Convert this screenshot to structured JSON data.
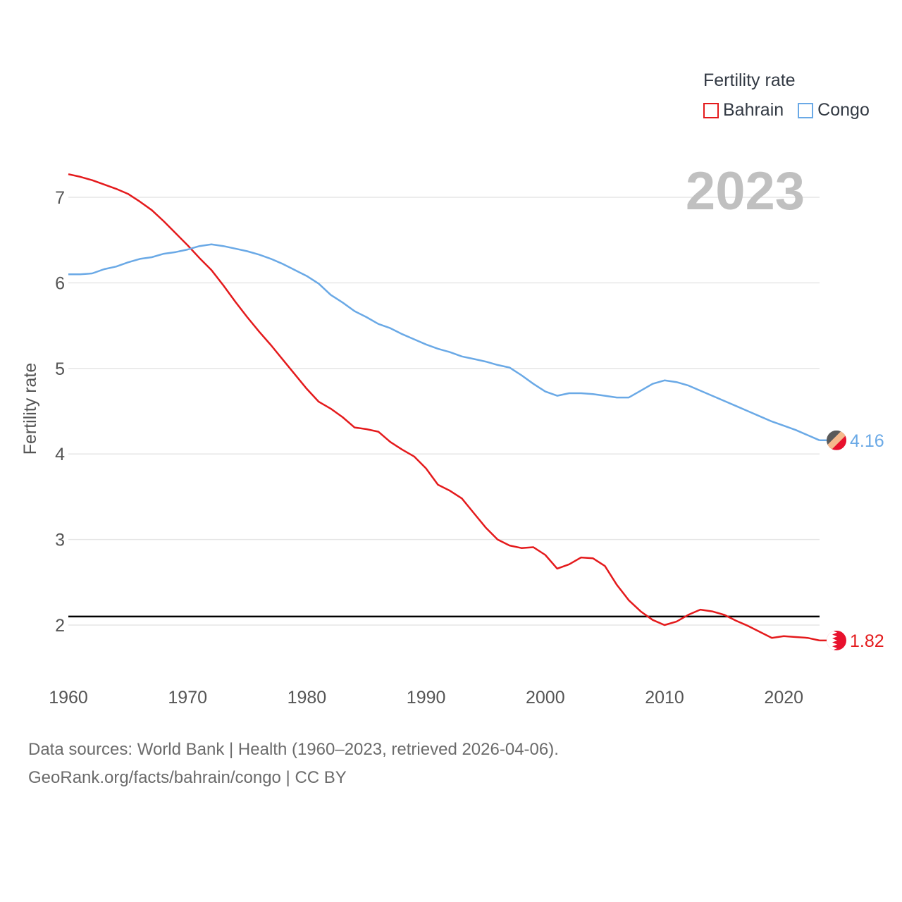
{
  "legend": {
    "title": "Fertility rate",
    "items": [
      {
        "label": "Bahrain",
        "color": "#e41a1c"
      },
      {
        "label": "Congo",
        "color": "#6aa9e6"
      }
    ]
  },
  "year_label": "2023",
  "source": {
    "line1": "Data sources: World Bank | Health (1960–2023, retrieved 2026-04-06).",
    "line2": "GeoRank.org/facts/bahrain/congo | CC BY"
  },
  "chart_data": {
    "type": "line",
    "ylabel": "Fertility rate",
    "xlabel": "",
    "xlim": [
      1960,
      2023
    ],
    "ylim": [
      1.5,
      7.35
    ],
    "xticks": [
      1960,
      1970,
      1980,
      1990,
      2000,
      2010,
      2020
    ],
    "yticks": [
      2,
      3,
      4,
      5,
      6,
      7
    ],
    "grid": true,
    "reference_line": {
      "y": 2.1,
      "color": "#000000"
    },
    "x": [
      1960,
      1961,
      1962,
      1963,
      1964,
      1965,
      1966,
      1967,
      1968,
      1969,
      1970,
      1971,
      1972,
      1973,
      1974,
      1975,
      1976,
      1977,
      1978,
      1979,
      1980,
      1981,
      1982,
      1983,
      1984,
      1985,
      1986,
      1987,
      1988,
      1989,
      1990,
      1991,
      1992,
      1993,
      1994,
      1995,
      1996,
      1997,
      1998,
      1999,
      2000,
      2001,
      2002,
      2003,
      2004,
      2005,
      2006,
      2007,
      2008,
      2009,
      2010,
      2011,
      2012,
      2013,
      2014,
      2015,
      2016,
      2017,
      2018,
      2019,
      2020,
      2021,
      2022,
      2023
    ],
    "series": [
      {
        "name": "Bahrain",
        "color": "#e41a1c",
        "end_label": "1.82",
        "values": [
          7.27,
          7.24,
          7.2,
          7.15,
          7.1,
          7.04,
          6.95,
          6.85,
          6.72,
          6.58,
          6.44,
          6.29,
          6.15,
          5.97,
          5.78,
          5.6,
          5.43,
          5.27,
          5.1,
          4.93,
          4.76,
          4.61,
          4.53,
          4.43,
          4.31,
          4.29,
          4.26,
          4.14,
          4.05,
          3.97,
          3.83,
          3.64,
          3.57,
          3.48,
          3.31,
          3.14,
          3.0,
          2.93,
          2.9,
          2.91,
          2.82,
          2.66,
          2.71,
          2.79,
          2.78,
          2.69,
          2.47,
          2.29,
          2.16,
          2.06,
          2.0,
          2.04,
          2.12,
          2.18,
          2.16,
          2.12,
          2.05,
          1.99,
          1.92,
          1.85,
          1.87,
          1.86,
          1.85,
          1.82
        ]
      },
      {
        "name": "Congo",
        "color": "#6aa9e6",
        "end_label": "4.16",
        "values": [
          6.1,
          6.1,
          6.11,
          6.16,
          6.19,
          6.24,
          6.28,
          6.3,
          6.34,
          6.36,
          6.39,
          6.43,
          6.45,
          6.43,
          6.4,
          6.37,
          6.33,
          6.28,
          6.22,
          6.15,
          6.08,
          5.99,
          5.86,
          5.77,
          5.67,
          5.6,
          5.52,
          5.47,
          5.4,
          5.34,
          5.28,
          5.23,
          5.19,
          5.14,
          5.11,
          5.08,
          5.04,
          5.01,
          4.92,
          4.82,
          4.73,
          4.68,
          4.71,
          4.71,
          4.7,
          4.68,
          4.66,
          4.66,
          4.74,
          4.82,
          4.86,
          4.84,
          4.8,
          4.74,
          4.68,
          4.62,
          4.56,
          4.5,
          4.44,
          4.38,
          4.33,
          4.28,
          4.22,
          4.16
        ]
      }
    ]
  }
}
